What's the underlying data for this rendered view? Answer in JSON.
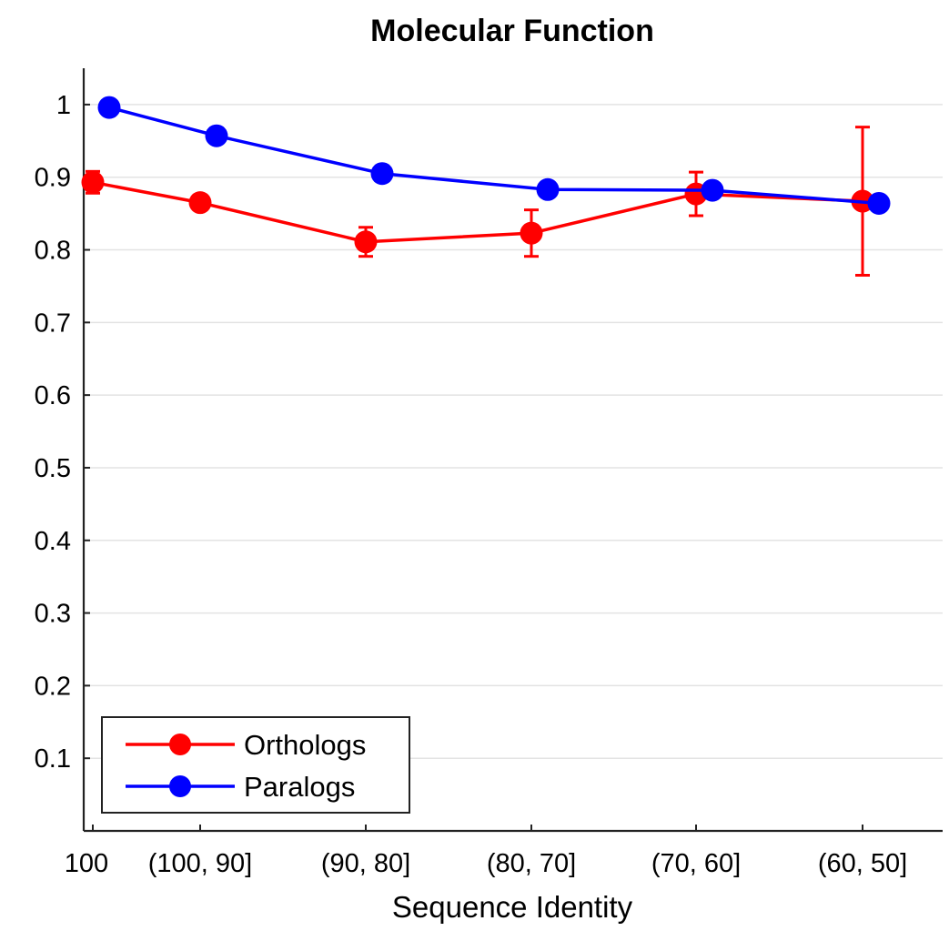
{
  "chart_data": {
    "type": "line",
    "title": "Molecular Function",
    "xlabel": "Sequence Identity",
    "ylabel": "",
    "categories": [
      "100",
      "(100, 90]",
      "(90, 80]",
      "(80, 70]",
      "(70, 60]",
      "(60, 50]"
    ],
    "ylim": [
      0.0,
      1.05
    ],
    "yticks": [
      0.1,
      0.2,
      0.3,
      0.4,
      0.5,
      0.6,
      0.7,
      0.8,
      0.9,
      1
    ],
    "ytick_labels": [
      "0.1",
      "0.2",
      "0.3",
      "0.4",
      "0.5",
      "0.6",
      "0.7",
      "0.8",
      "0.9",
      "1"
    ],
    "grid": true,
    "legend_position": "bottom-left",
    "series": [
      {
        "name": "Orthologs",
        "color": "#ff0000",
        "values": [
          0.893,
          0.865,
          0.811,
          0.823,
          0.877,
          0.867
        ],
        "errors": [
          0.015,
          0.006,
          0.02,
          0.032,
          0.03,
          0.102
        ]
      },
      {
        "name": "Paralogs",
        "color": "#0000ff",
        "values": [
          0.996,
          0.957,
          0.905,
          0.883,
          0.882,
          0.864
        ],
        "errors": null
      }
    ]
  }
}
